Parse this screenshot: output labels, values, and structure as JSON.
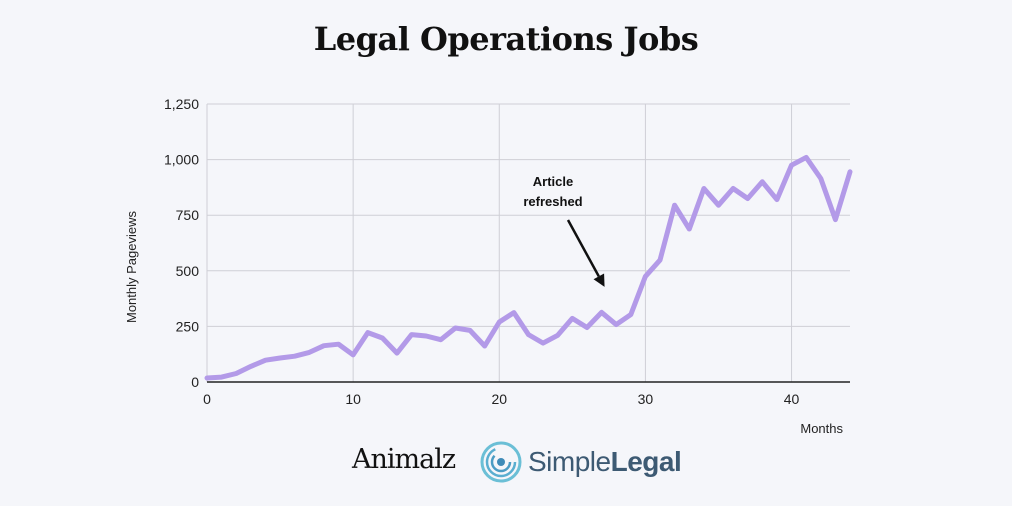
{
  "title": "Legal Operations Jobs",
  "logos": {
    "animalz": "Animalz",
    "simplelegal_a": "Simple",
    "simplelegal_b": "Legal"
  },
  "chart_data": {
    "type": "line",
    "title": "Legal Operations Jobs",
    "xlabel": "Months",
    "ylabel": "Monthly Pageviews",
    "xlim": [
      0,
      44
    ],
    "ylim": [
      0,
      1250
    ],
    "x_ticks": [
      0,
      10,
      20,
      30,
      40
    ],
    "y_ticks": [
      0,
      250,
      500,
      750,
      1000,
      1250
    ],
    "y_tick_labels": [
      "0",
      "250",
      "500",
      "750",
      "1,000",
      "1,250"
    ],
    "grid": true,
    "line_color": "#b39ae8",
    "series": [
      {
        "name": "",
        "x": [
          0,
          1,
          2,
          3,
          4,
          5,
          6,
          7,
          8,
          9,
          10,
          11,
          12,
          13,
          14,
          15,
          16,
          17,
          18,
          19,
          20,
          21,
          22,
          23,
          24,
          25,
          26,
          27,
          28,
          29,
          30,
          31,
          32,
          33,
          34,
          35,
          36,
          37,
          38,
          39,
          40,
          41,
          42,
          43,
          44
        ],
        "values": [
          18,
          22,
          38,
          70,
          98,
          108,
          116,
          133,
          163,
          170,
          122,
          222,
          198,
          130,
          213,
          207,
          190,
          243,
          232,
          162,
          270,
          312,
          213,
          175,
          210,
          286,
          245,
          313,
          258,
          303,
          475,
          548,
          795,
          688,
          870,
          795,
          870,
          825,
          900,
          820,
          975,
          1010,
          915,
          730,
          945
        ]
      }
    ],
    "annotations": [
      {
        "lines": [
          "Article",
          "refreshed"
        ],
        "arrow_to": [
          27,
          360
        ]
      }
    ]
  }
}
